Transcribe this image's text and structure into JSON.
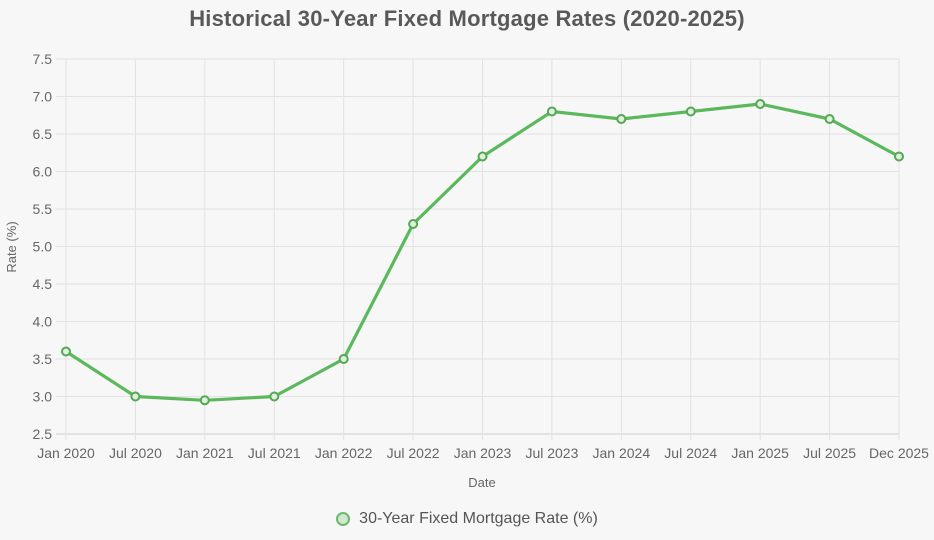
{
  "page": {
    "background": "#f7f7f7"
  },
  "chart_data": {
    "type": "line",
    "title": "Historical 30-Year Fixed Mortgage Rates (2020-2025)",
    "xlabel": "Date",
    "ylabel": "Rate (%)",
    "categories": [
      "Jan 2020",
      "Jul 2020",
      "Jan 2021",
      "Jul 2021",
      "Jan 2022",
      "Jul 2022",
      "Jan 2023",
      "Jul 2023",
      "Jan 2024",
      "Jul 2024",
      "Jan 2025",
      "Jul 2025",
      "Dec 2025"
    ],
    "series": [
      {
        "name": "30-Year Fixed Mortgage Rate (%)",
        "values": [
          3.6,
          3.0,
          2.95,
          3.0,
          3.5,
          5.3,
          6.2,
          6.8,
          6.7,
          6.8,
          6.9,
          6.7,
          6.2
        ]
      }
    ],
    "ylim": [
      2.5,
      7.5
    ],
    "ytick_step": 0.5,
    "yticks": [
      "2.5",
      "3.0",
      "3.5",
      "4.0",
      "4.5",
      "5.0",
      "5.5",
      "6.0",
      "6.5",
      "7.0",
      "7.5"
    ],
    "grid": true,
    "legend_position": "bottom",
    "colors": {
      "line": "#5cb85c",
      "marker_fill": "#dff0df",
      "marker_stroke": "#54a854",
      "legend_marker_fill": "#cfe8cf",
      "legend_marker_stroke": "#6db96d",
      "grid_line": "#e2e2e2",
      "axis_line": "#cfcfcf",
      "title_text": "#595959",
      "tick_text": "#666666",
      "legend_text": "#555555"
    }
  }
}
